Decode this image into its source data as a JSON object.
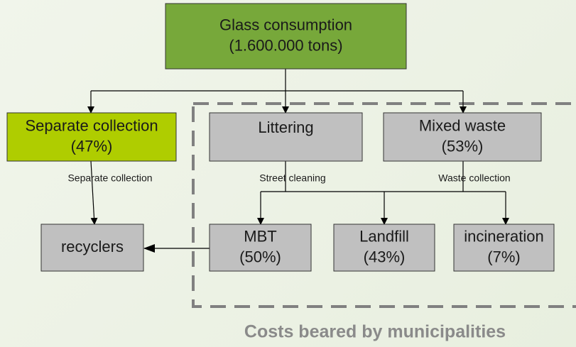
{
  "nodes": [
    {
      "lines": [
        "Glass consumption",
        "(1.600.000 tons)"
      ]
    },
    {
      "lines": [
        "Separate collection",
        "(47%)"
      ]
    },
    {
      "lines": [
        "Littering"
      ]
    },
    {
      "lines": [
        "Mixed waste",
        "(53%)"
      ]
    },
    {
      "lines": [
        "recyclers"
      ]
    },
    {
      "lines": [
        "MBT",
        "(50%)"
      ]
    },
    {
      "lines": [
        "Landfill",
        "(43%)"
      ]
    },
    {
      "lines": [
        "incineration",
        "(7%)"
      ]
    }
  ],
  "edge_labels": [
    "Separate collection",
    "Street cleaning",
    "Waste collection"
  ],
  "caption": "Costs beared by municipalities"
}
